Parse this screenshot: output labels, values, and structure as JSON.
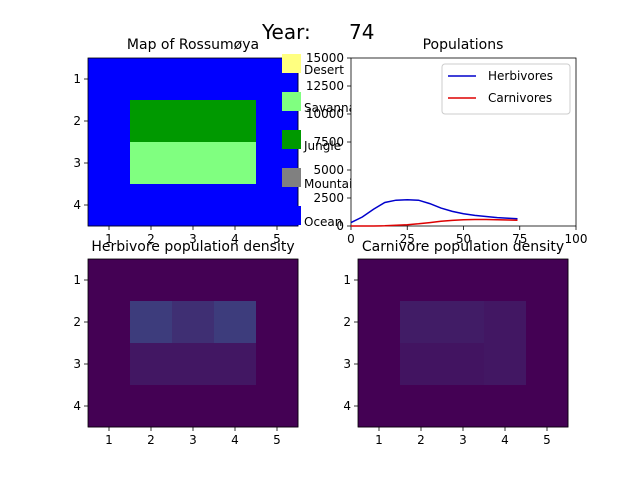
{
  "header": {
    "label": "Year:",
    "value": "74"
  },
  "colors": {
    "ocean": "#0000ff",
    "mountain": "#808080",
    "jungle": "#009900",
    "savannah": "#80ff80",
    "desert": "#ffff80",
    "herbivore": "#0000cc",
    "carnivore": "#dd0000",
    "density_bg": "#440154"
  },
  "chart_data": [
    {
      "type": "heatmap",
      "title": "Map of Rossumøya",
      "x_ticks": [
        "1",
        "2",
        "3",
        "4",
        "5"
      ],
      "y_ticks": [
        "1",
        "2",
        "3",
        "4"
      ],
      "grid": [
        [
          "Ocean",
          "Ocean",
          "Ocean",
          "Ocean",
          "Ocean"
        ],
        [
          "Ocean",
          "Jungle",
          "Jungle",
          "Jungle",
          "Ocean"
        ],
        [
          "Ocean",
          "Savannah",
          "Savannah",
          "Savannah",
          "Ocean"
        ],
        [
          "Ocean",
          "Ocean",
          "Ocean",
          "Ocean",
          "Ocean"
        ]
      ],
      "legend": [
        "Desert",
        "Savannah",
        "Jungle",
        "Mountain",
        "Ocean"
      ]
    },
    {
      "type": "line",
      "title": "Populations",
      "xlim": [
        0,
        100
      ],
      "ylim": [
        0,
        15000
      ],
      "x_ticks": [
        "0",
        "25",
        "50",
        "75",
        "100"
      ],
      "y_ticks": [
        "0",
        "2500",
        "5000",
        "7500",
        "10000",
        "12500",
        "15000"
      ],
      "legend_position": "top-right",
      "series": [
        {
          "name": "Herbivores",
          "x": [
            0,
            5,
            10,
            15,
            20,
            25,
            30,
            35,
            40,
            45,
            50,
            55,
            60,
            65,
            70,
            74
          ],
          "values": [
            300,
            800,
            1500,
            2100,
            2300,
            2350,
            2300,
            2000,
            1600,
            1300,
            1100,
            950,
            850,
            750,
            700,
            650
          ]
        },
        {
          "name": "Carnivores",
          "x": [
            0,
            5,
            10,
            15,
            20,
            25,
            30,
            35,
            40,
            45,
            50,
            55,
            60,
            65,
            70,
            74
          ],
          "values": [
            0,
            0,
            0,
            20,
            60,
            120,
            200,
            300,
            420,
            500,
            560,
            580,
            580,
            560,
            540,
            520
          ]
        }
      ]
    },
    {
      "type": "heatmap",
      "title": "Herbivore population density",
      "x_ticks": [
        "1",
        "2",
        "3",
        "4",
        "5"
      ],
      "y_ticks": [
        "1",
        "2",
        "3",
        "4"
      ],
      "grid": [
        [
          0,
          0,
          0,
          0,
          0
        ],
        [
          0,
          0.22,
          0.17,
          0.22,
          0
        ],
        [
          0,
          0.08,
          0.08,
          0.08,
          0
        ],
        [
          0,
          0,
          0,
          0,
          0
        ]
      ]
    },
    {
      "type": "heatmap",
      "title": "Carnivore population density",
      "x_ticks": [
        "1",
        "2",
        "3",
        "4",
        "5"
      ],
      "y_ticks": [
        "1",
        "2",
        "3",
        "4"
      ],
      "grid": [
        [
          0,
          0,
          0,
          0,
          0
        ],
        [
          0,
          0.1,
          0.1,
          0.08,
          0
        ],
        [
          0,
          0.07,
          0.07,
          0.08,
          0
        ],
        [
          0,
          0,
          0,
          0,
          0
        ]
      ]
    }
  ]
}
